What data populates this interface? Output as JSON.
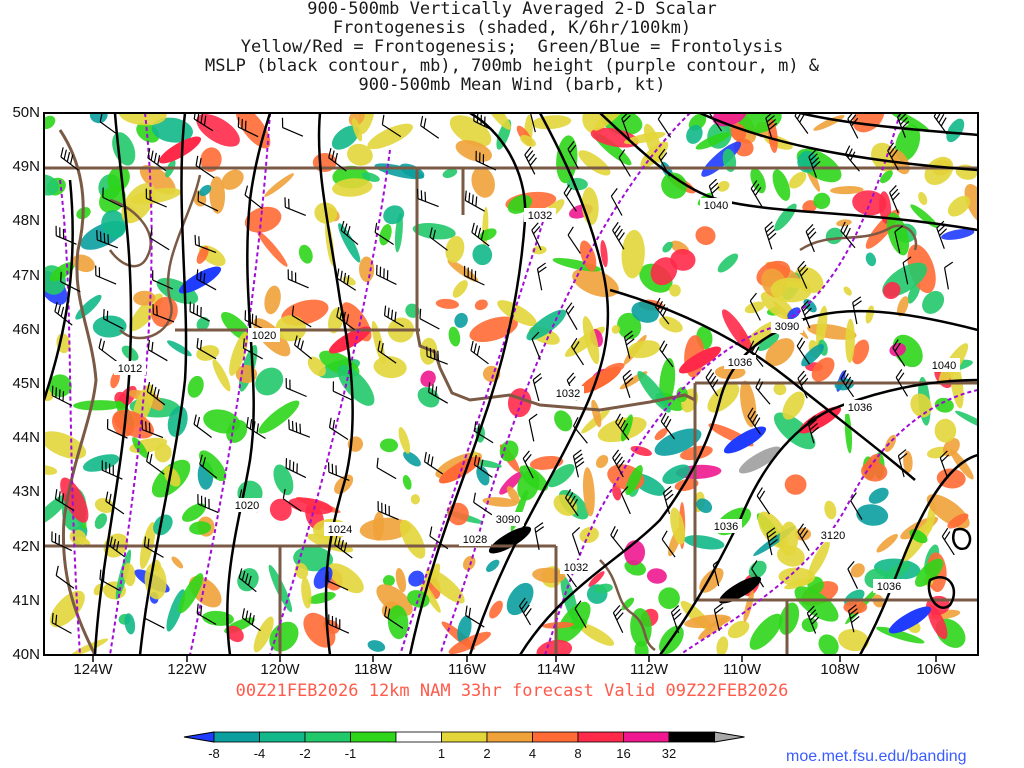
{
  "title": {
    "line1": "900-500mb Vertically Averaged 2-D Scalar",
    "line2": "Frontogenesis (shaded, K/6hr/100km)",
    "line3": "Yellow/Red = Frontogenesis;  Green/Blue = Frontolysis",
    "line4": "MSLP (black contour, mb), 700mb height (purple contour, m) &",
    "line5": "900-500mb Mean Wind (barb, kt)"
  },
  "lat_labels": [
    "50N",
    "49N",
    "48N",
    "47N",
    "46N",
    "45N",
    "44N",
    "43N",
    "42N",
    "41N",
    "40N"
  ],
  "lon_labels": [
    "124W",
    "122W",
    "120W",
    "118W",
    "116W",
    "114W",
    "112W",
    "110W",
    "108W",
    "106W"
  ],
  "valid_text": "00Z21FEB2026 12km NAM 33hr forecast Valid 09Z22FEB2026",
  "colorbar": {
    "labels": [
      "-8",
      "-4",
      "-2",
      "-1",
      "1",
      "2",
      "4",
      "8",
      "16",
      "32"
    ],
    "colors": [
      "#1f3cff",
      "#0a9e9e",
      "#12b88a",
      "#22c96a",
      "#2ed51a",
      "#ffffff",
      "#e2d63a",
      "#f0a23a",
      "#ff6a35",
      "#ff2a4a",
      "#f01890",
      "#000000",
      "#a8a8a8"
    ]
  },
  "contour_labels": {
    "mslp": [
      "1020",
      "1012",
      "1020",
      "1024",
      "1028",
      "1032",
      "1032",
      "1032",
      "1036",
      "1036",
      "1036",
      "1036",
      "1040",
      "1040"
    ],
    "height": [
      "3090",
      "3090",
      "3120"
    ]
  },
  "credit": "moe.met.fsu.edu/banding"
}
